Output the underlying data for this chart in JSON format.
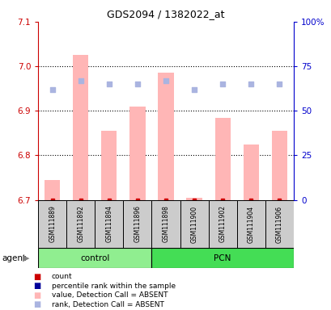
{
  "title": "GDS2094 / 1382022_at",
  "samples": [
    "GSM111889",
    "GSM111892",
    "GSM111894",
    "GSM111896",
    "GSM111898",
    "GSM111900",
    "GSM111902",
    "GSM111904",
    "GSM111906"
  ],
  "groups": [
    {
      "name": "control",
      "indices": [
        0,
        1,
        2,
        3
      ]
    },
    {
      "name": "PCN",
      "indices": [
        4,
        5,
        6,
        7,
        8
      ]
    }
  ],
  "bar_values": [
    6.745,
    7.025,
    6.855,
    6.91,
    6.985,
    6.705,
    6.885,
    6.825,
    6.855
  ],
  "bar_bottom": 6.7,
  "rank_values": [
    62,
    67,
    65,
    65,
    67,
    62,
    65,
    65,
    65
  ],
  "ylim_left": [
    6.7,
    7.1
  ],
  "ylim_right": [
    0,
    100
  ],
  "yticks_left": [
    6.7,
    6.8,
    6.9,
    7.0,
    7.1
  ],
  "ytick_labels_right": [
    "0",
    "25",
    "50",
    "75",
    "100%"
  ],
  "yticks_right": [
    0,
    25,
    50,
    75,
    100
  ],
  "hgrid_lines": [
    6.8,
    6.9,
    7.0
  ],
  "bar_color": "#ffb6b6",
  "rank_color": "#aab4e0",
  "left_axis_color": "#cc0000",
  "right_axis_color": "#0000cc",
  "box_color": "#cccccc",
  "control_color": "#90ee90",
  "pcn_color": "#44dd55",
  "label_count": "count",
  "label_percentile": "percentile rank within the sample",
  "label_value_absent": "value, Detection Call = ABSENT",
  "label_rank_absent": "rank, Detection Call = ABSENT",
  "legend_count_color": "#cc0000",
  "legend_percentile_color": "#000099",
  "legend_value_absent_color": "#ffb6b6",
  "legend_rank_absent_color": "#aab4e0",
  "agent_label": "agent",
  "figsize": [
    4.1,
    3.84
  ],
  "dpi": 100
}
